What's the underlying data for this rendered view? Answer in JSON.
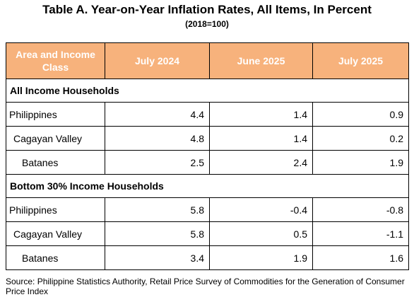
{
  "header": {
    "title": "Table A. Year-on-Year Inflation Rates, All Items, In Percent",
    "subtitle": "(2018=100)"
  },
  "table": {
    "columns": [
      "Area and Income Class",
      "July 2024",
      "June 2025",
      "July 2025"
    ],
    "sections": [
      {
        "title": "All Income Households",
        "rows": [
          [
            "Philippines",
            4.4,
            1.4,
            0.9
          ],
          [
            "Cagayan Valley",
            4.8,
            1.4,
            0.2
          ],
          [
            "Batanes",
            2.5,
            2.4,
            1.9
          ]
        ]
      },
      {
        "title": "Bottom 30% Income Households",
        "rows": [
          [
            "Philippines",
            5.8,
            -0.4,
            -0.8
          ],
          [
            "Cagayan Valley",
            5.8,
            0.5,
            -1.1
          ],
          [
            "Batanes",
            3.4,
            1.9,
            1.6
          ]
        ]
      }
    ]
  },
  "source": "Source: Philippine Statistics Authority, Retail Price Survey of Commodities for the Generation of Consumer Price Index"
}
